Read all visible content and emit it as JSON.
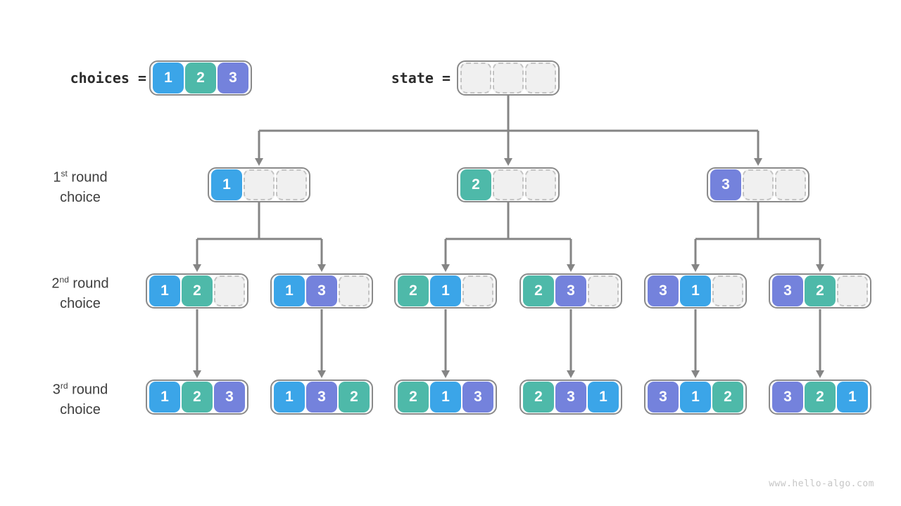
{
  "header": {
    "choices_label": "choices =",
    "state_label": "state ="
  },
  "row_labels": [
    {
      "num": "1",
      "ordinal": "st",
      "rest": " round",
      "line2": "choice"
    },
    {
      "num": "2",
      "ordinal": "nd",
      "rest": " round",
      "line2": "choice"
    },
    {
      "num": "3",
      "ordinal": "rd",
      "rest": " round",
      "line2": "choice"
    }
  ],
  "tree": {
    "choices": {
      "cells": [
        "1",
        "2",
        "3"
      ]
    },
    "root_state": {
      "cells": [
        null,
        null,
        null
      ]
    },
    "level1": [
      {
        "cells": [
          "1",
          null,
          null
        ]
      },
      {
        "cells": [
          "2",
          null,
          null
        ]
      },
      {
        "cells": [
          "3",
          null,
          null
        ]
      }
    ],
    "level2": [
      {
        "cells": [
          "1",
          "2",
          null
        ]
      },
      {
        "cells": [
          "1",
          "3",
          null
        ]
      },
      {
        "cells": [
          "2",
          "1",
          null
        ]
      },
      {
        "cells": [
          "2",
          "3",
          null
        ]
      },
      {
        "cells": [
          "3",
          "1",
          null
        ]
      },
      {
        "cells": [
          "3",
          "2",
          null
        ]
      }
    ],
    "level3": [
      {
        "cells": [
          "1",
          "2",
          "3"
        ]
      },
      {
        "cells": [
          "1",
          "3",
          "2"
        ]
      },
      {
        "cells": [
          "2",
          "1",
          "3"
        ]
      },
      {
        "cells": [
          "2",
          "3",
          "1"
        ]
      },
      {
        "cells": [
          "3",
          "1",
          "2"
        ]
      },
      {
        "cells": [
          "3",
          "2",
          "1"
        ]
      }
    ]
  },
  "colors": {
    "1": "#3ba5e8",
    "2": "#4eb9a9",
    "3": "#7482dc",
    "connector": "#858585",
    "node_border": "#8a8a8a",
    "empty_cell_bg": "#f0f0f0",
    "empty_cell_border": "#c4c4c4",
    "label_text": "#3e3e3e",
    "mono_text": "#2b2b2b",
    "watermark": "#c6c6c6"
  },
  "watermark": "www.hello-algo.com"
}
